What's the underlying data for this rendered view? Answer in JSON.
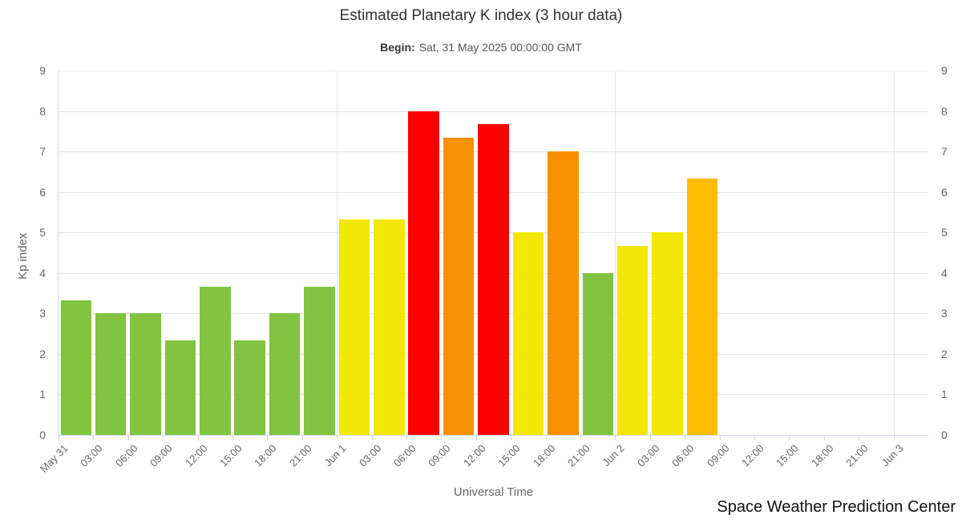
{
  "chart_data": {
    "type": "bar",
    "title": "Estimated Planetary K index (3 hour data)",
    "subtitle": {
      "label": "Begin:",
      "value": "Sat, 31 May 2025 00:00:00 GMT"
    },
    "xlabel": "Universal Time",
    "ylabel": "Kp index",
    "ylim": [
      0,
      9
    ],
    "yticks": [
      0,
      1,
      2,
      3,
      4,
      5,
      6,
      7,
      8,
      9
    ],
    "y_axis_sides": [
      "left",
      "right"
    ],
    "categories": [
      "May 31",
      "03:00",
      "06:00",
      "09:00",
      "12:00",
      "15:00",
      "18:00",
      "21:00",
      "Jun 1",
      "03:00",
      "06:00",
      "09:00",
      "12:00",
      "15:00",
      "18:00",
      "21:00",
      "Jun 2",
      "03:00",
      "06:00",
      "09:00",
      "12:00",
      "15:00",
      "18:00",
      "21:00",
      "Jun 3"
    ],
    "x_slots": 25,
    "day_boundary_tick_indices": [
      8,
      16,
      24
    ],
    "values": [
      3.33,
      3.0,
      3.0,
      2.33,
      3.67,
      2.33,
      3.0,
      3.67,
      5.33,
      5.33,
      8.0,
      7.33,
      7.67,
      5.0,
      7.0,
      4.0,
      4.67,
      5.0,
      6.33
    ],
    "bar_colors": [
      "green",
      "green",
      "green",
      "green",
      "green",
      "green",
      "green",
      "green",
      "yellow",
      "yellow",
      "red",
      "orange",
      "red",
      "yellow",
      "orange",
      "green",
      "yellow",
      "yellow",
      "amber"
    ],
    "colors": {
      "green": "#80C440",
      "yellow": "#F3E703",
      "amber": "#FFBB00",
      "orange": "#F89000",
      "red": "#FB0000"
    },
    "grid_color": "#E6E6E6",
    "axis_line_color": "#CCD6EB",
    "legend": "none"
  },
  "credit": "Space Weather Prediction Center",
  "text_colors": {
    "title": "#333333",
    "subtitle": "#555555",
    "axis_labels": "#666666",
    "credit": "#111111"
  }
}
